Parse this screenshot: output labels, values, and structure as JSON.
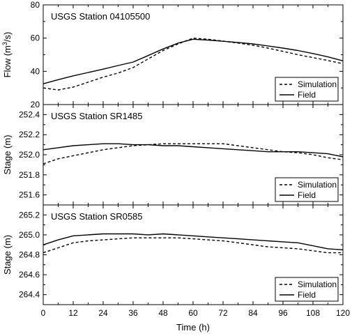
{
  "chart_data": [
    {
      "type": "line",
      "title": "USGS Station 04105500",
      "ylabel": "Flow (m",
      "ylabel_sup": "3",
      "ylabel_suffix": "/s)",
      "ylim": [
        20,
        80
      ],
      "yticks": [
        "20",
        "40",
        "60",
        "80"
      ],
      "legend_position": "bottom-right",
      "series": [
        {
          "name": "Simulation",
          "style": "dashed",
          "x": [
            0,
            6,
            12,
            18,
            24,
            30,
            36,
            42,
            48,
            54,
            60,
            66,
            72,
            78,
            84,
            90,
            96,
            102,
            108,
            114,
            120
          ],
          "values": [
            30,
            28.8,
            30.5,
            33.5,
            36.5,
            39,
            42.3,
            47.5,
            52.5,
            56.5,
            60,
            59.3,
            58.2,
            57,
            55.7,
            54,
            52,
            50,
            48.3,
            46.5,
            44.6
          ]
        },
        {
          "name": "Field",
          "style": "solid",
          "x": [
            0,
            6,
            12,
            18,
            24,
            30,
            36,
            42,
            48,
            54,
            60,
            66,
            72,
            78,
            84,
            90,
            96,
            102,
            108,
            114,
            120
          ],
          "values": [
            32.5,
            35,
            37.3,
            39.3,
            41.3,
            43.5,
            45.6,
            49.5,
            53.5,
            57,
            59.3,
            58.8,
            58.1,
            57.4,
            56.5,
            55.3,
            54,
            52.5,
            50.7,
            48.7,
            46.3
          ]
        }
      ]
    },
    {
      "type": "line",
      "title": "USGS Station SR1485",
      "ylabel": "Stage (m)",
      "ylim": [
        251.5,
        252.5
      ],
      "yticks": [
        "251.6",
        "251.8",
        "252.0",
        "252.2",
        "252.4"
      ],
      "legend_position": "bottom-right",
      "series": [
        {
          "name": "Simulation",
          "style": "dashed",
          "x": [
            0,
            6,
            12,
            18,
            24,
            30,
            36,
            42,
            48,
            54,
            60,
            66,
            72,
            78,
            84,
            90,
            96,
            102,
            108,
            114,
            120
          ],
          "values": [
            251.91,
            251.96,
            251.99,
            252.02,
            252.05,
            252.07,
            252.09,
            252.1,
            252.11,
            252.11,
            252.11,
            252.11,
            252.11,
            252.09,
            252.07,
            252.05,
            252.03,
            252.02,
            252.0,
            251.97,
            251.95
          ]
        },
        {
          "name": "Field",
          "style": "solid",
          "x": [
            0,
            6,
            12,
            18,
            24,
            30,
            36,
            42,
            48,
            54,
            60,
            66,
            72,
            78,
            84,
            90,
            96,
            102,
            108,
            114,
            120
          ],
          "values": [
            252.05,
            252.07,
            252.09,
            252.1,
            252.11,
            252.11,
            252.1,
            252.1,
            252.09,
            252.09,
            252.08,
            252.07,
            252.06,
            252.05,
            252.04,
            252.03,
            252.03,
            252.03,
            252.02,
            252.01,
            251.98
          ]
        }
      ]
    },
    {
      "type": "line",
      "title": "USGS Station SR0585",
      "ylabel": "Stage (m)",
      "ylim": [
        264.3,
        265.3
      ],
      "yticks": [
        "264.4",
        "264.6",
        "264.8",
        "265.0",
        "265.2"
      ],
      "xlabel": "Time (h)",
      "xlim": [
        0,
        120
      ],
      "xticks": [
        "0",
        "12",
        "24",
        "36",
        "48",
        "60",
        "72",
        "84",
        "96",
        "108",
        "120"
      ],
      "legend_position": "bottom-right",
      "series": [
        {
          "name": "Simulation",
          "style": "dashed",
          "x": [
            0,
            6,
            12,
            18,
            24,
            30,
            36,
            42,
            48,
            54,
            60,
            66,
            72,
            78,
            84,
            90,
            96,
            102,
            108,
            114,
            120
          ],
          "values": [
            264.82,
            264.87,
            264.92,
            264.94,
            264.95,
            264.96,
            264.97,
            264.97,
            264.97,
            264.97,
            264.96,
            264.95,
            264.94,
            264.92,
            264.9,
            264.88,
            264.87,
            264.86,
            264.84,
            264.82,
            264.82
          ]
        },
        {
          "name": "Field",
          "style": "solid",
          "x": [
            0,
            6,
            12,
            18,
            24,
            30,
            36,
            42,
            48,
            54,
            60,
            66,
            72,
            78,
            84,
            90,
            96,
            102,
            108,
            114,
            120
          ],
          "values": [
            264.9,
            264.95,
            264.99,
            265.0,
            265.01,
            265.01,
            265.01,
            265.0,
            265.01,
            265.0,
            264.99,
            264.98,
            264.97,
            264.96,
            264.95,
            264.94,
            264.93,
            264.92,
            264.89,
            264.86,
            264.85
          ]
        }
      ]
    }
  ]
}
